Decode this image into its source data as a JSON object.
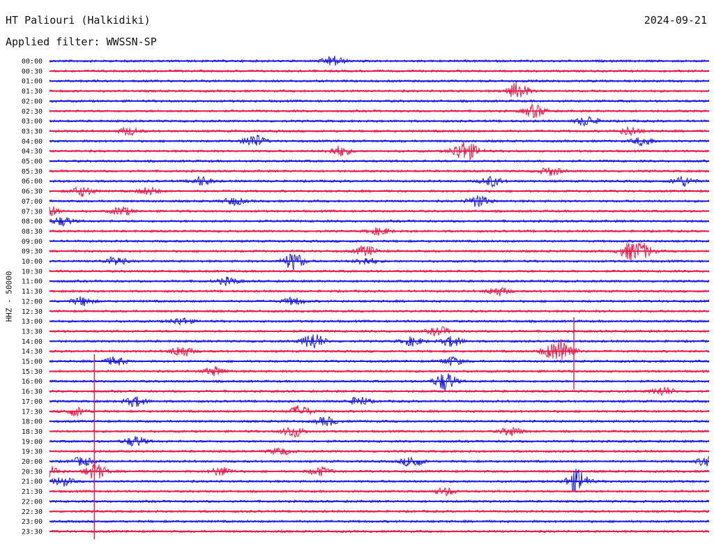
{
  "header": {
    "station": "HT Paliouri (Halkidiki)",
    "date": "2024-09-21",
    "filter": "Applied filter: WWSSN-SP"
  },
  "chart_data": {
    "type": "line",
    "title": "HT Paliouri (Halkidiki)",
    "subtitle": "Applied filter: WWSSN-SP",
    "date": "2024-09-21",
    "ylabel": "HHZ - 50000",
    "xlabel": "",
    "grid": false,
    "row_labels": [
      "00:00",
      "00:30",
      "01:00",
      "01:30",
      "02:00",
      "02:30",
      "03:00",
      "03:30",
      "04:00",
      "04:30",
      "05:00",
      "05:30",
      "06:00",
      "06:30",
      "07:00",
      "07:30",
      "08:00",
      "08:30",
      "09:00",
      "09:30",
      "10:00",
      "10:30",
      "11:00",
      "11:30",
      "12:00",
      "12:30",
      "13:00",
      "13:30",
      "14:00",
      "14:30",
      "15:00",
      "15:30",
      "16:00",
      "16:30",
      "17:00",
      "17:30",
      "18:00",
      "18:30",
      "19:00",
      "19:30",
      "20:00",
      "20:30",
      "21:00",
      "21:30",
      "22:00",
      "22:30",
      "23:00",
      "23:30"
    ],
    "colors": [
      "#1a1ae6",
      "#ee1a4a"
    ],
    "bursts": [
      {
        "row": 0,
        "pos": 0.43,
        "amp": 7
      },
      {
        "row": 3,
        "pos": 0.71,
        "amp": 12
      },
      {
        "row": 5,
        "pos": 0.735,
        "amp": 9
      },
      {
        "row": 6,
        "pos": 0.815,
        "amp": 7
      },
      {
        "row": 7,
        "pos": 0.12,
        "amp": 5
      },
      {
        "row": 7,
        "pos": 0.88,
        "amp": 6
      },
      {
        "row": 8,
        "pos": 0.31,
        "amp": 9
      },
      {
        "row": 8,
        "pos": 0.9,
        "amp": 6
      },
      {
        "row": 9,
        "pos": 0.44,
        "amp": 7
      },
      {
        "row": 9,
        "pos": 0.625,
        "amp": 11
      },
      {
        "row": 9,
        "pos": 0.64,
        "amp": 6
      },
      {
        "row": 11,
        "pos": 0.76,
        "amp": 6
      },
      {
        "row": 12,
        "pos": 0.23,
        "amp": 6
      },
      {
        "row": 12,
        "pos": 0.67,
        "amp": 7
      },
      {
        "row": 12,
        "pos": 0.96,
        "amp": 7
      },
      {
        "row": 13,
        "pos": 0.05,
        "amp": 7
      },
      {
        "row": 13,
        "pos": 0.15,
        "amp": 5
      },
      {
        "row": 14,
        "pos": 0.28,
        "amp": 5
      },
      {
        "row": 14,
        "pos": 0.65,
        "amp": 8
      },
      {
        "row": 15,
        "pos": 0.0,
        "amp": 7
      },
      {
        "row": 15,
        "pos": 0.11,
        "amp": 6
      },
      {
        "row": 16,
        "pos": 0.02,
        "amp": 6
      },
      {
        "row": 17,
        "pos": 0.5,
        "amp": 5
      },
      {
        "row": 19,
        "pos": 0.48,
        "amp": 7
      },
      {
        "row": 19,
        "pos": 0.88,
        "amp": 11
      },
      {
        "row": 19,
        "pos": 0.9,
        "amp": 9
      },
      {
        "row": 20,
        "pos": 0.1,
        "amp": 6
      },
      {
        "row": 20,
        "pos": 0.37,
        "amp": 12
      },
      {
        "row": 20,
        "pos": 0.48,
        "amp": 5
      },
      {
        "row": 22,
        "pos": 0.27,
        "amp": 5
      },
      {
        "row": 23,
        "pos": 0.68,
        "amp": 6
      },
      {
        "row": 24,
        "pos": 0.05,
        "amp": 6
      },
      {
        "row": 24,
        "pos": 0.37,
        "amp": 5
      },
      {
        "row": 26,
        "pos": 0.2,
        "amp": 5
      },
      {
        "row": 27,
        "pos": 0.59,
        "amp": 6
      },
      {
        "row": 28,
        "pos": 0.4,
        "amp": 12
      },
      {
        "row": 28,
        "pos": 0.55,
        "amp": 6
      },
      {
        "row": 28,
        "pos": 0.61,
        "amp": 7
      },
      {
        "row": 29,
        "pos": 0.2,
        "amp": 8
      },
      {
        "row": 29,
        "pos": 0.78,
        "amp": 16
      },
      {
        "row": 29,
        "pos": 0.76,
        "amp": 8
      },
      {
        "row": 30,
        "pos": 0.1,
        "amp": 6
      },
      {
        "row": 30,
        "pos": 0.61,
        "amp": 6
      },
      {
        "row": 31,
        "pos": 0.25,
        "amp": 6
      },
      {
        "row": 32,
        "pos": 0.6,
        "amp": 13
      },
      {
        "row": 33,
        "pos": 0.93,
        "amp": 6
      },
      {
        "row": 34,
        "pos": 0.13,
        "amp": 7
      },
      {
        "row": 34,
        "pos": 0.47,
        "amp": 6
      },
      {
        "row": 35,
        "pos": 0.04,
        "amp": 6
      },
      {
        "row": 35,
        "pos": 0.38,
        "amp": 8
      },
      {
        "row": 36,
        "pos": 0.42,
        "amp": 6
      },
      {
        "row": 37,
        "pos": 0.37,
        "amp": 8
      },
      {
        "row": 37,
        "pos": 0.7,
        "amp": 6
      },
      {
        "row": 38,
        "pos": 0.13,
        "amp": 7
      },
      {
        "row": 39,
        "pos": 0.35,
        "amp": 5
      },
      {
        "row": 40,
        "pos": 0.05,
        "amp": 6
      },
      {
        "row": 40,
        "pos": 0.55,
        "amp": 8
      },
      {
        "row": 40,
        "pos": 1.0,
        "amp": 9
      },
      {
        "row": 41,
        "pos": 0.0,
        "amp": 7
      },
      {
        "row": 41,
        "pos": 0.07,
        "amp": 11
      },
      {
        "row": 41,
        "pos": 0.26,
        "amp": 6
      },
      {
        "row": 41,
        "pos": 0.41,
        "amp": 6
      },
      {
        "row": 42,
        "pos": 0.02,
        "amp": 6
      },
      {
        "row": 42,
        "pos": 0.8,
        "amp": 17
      },
      {
        "row": 43,
        "pos": 0.6,
        "amp": 5
      }
    ],
    "spikes": [
      {
        "pos": 0.068,
        "from_row": 29.3,
        "to_row": 47.8
      },
      {
        "pos": 0.795,
        "from_row": 25.6,
        "to_row": 32.8
      }
    ]
  }
}
